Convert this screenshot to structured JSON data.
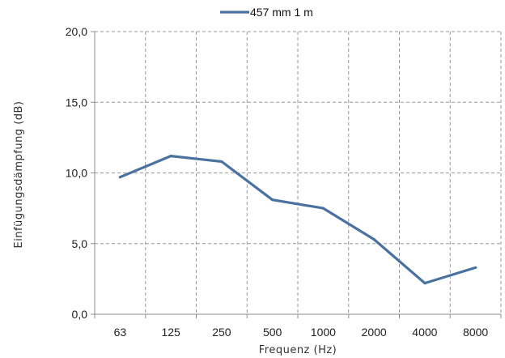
{
  "chart_data": {
    "type": "line",
    "categories": [
      "63",
      "125",
      "250",
      "500",
      "1000",
      "2000",
      "4000",
      "8000"
    ],
    "series": [
      {
        "name": "457 mm 1 m",
        "values": [
          9.7,
          11.2,
          10.8,
          8.1,
          7.5,
          5.3,
          2.2,
          3.3
        ],
        "color": "#4a72a0"
      }
    ],
    "yticks": [
      "0,0",
      "5,0",
      "10,0",
      "15,0",
      "20,0"
    ],
    "ylim": [
      0,
      20
    ],
    "xlabel": "Frequenz (Hz)",
    "ylabel": "Einfügungsdämpfung (dB)",
    "legend_position": "top",
    "grid": true,
    "grid_color": "#9a9a9a",
    "axis_color": "#8c8c8c"
  }
}
